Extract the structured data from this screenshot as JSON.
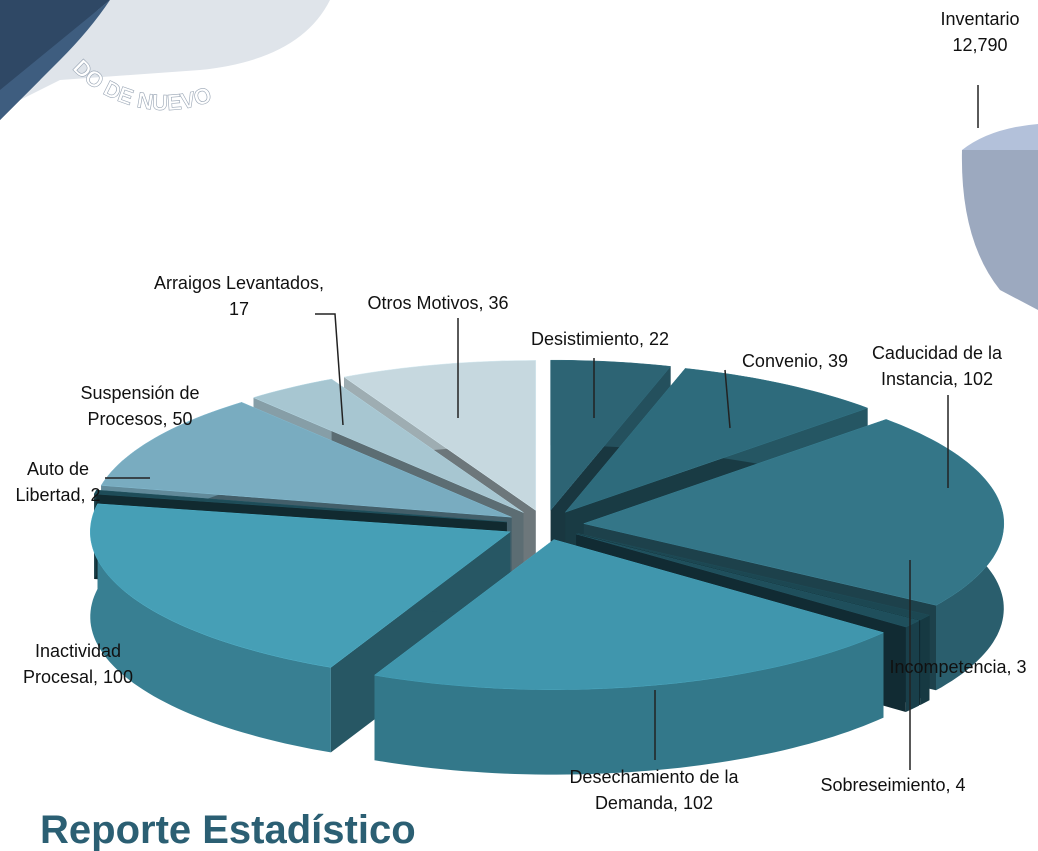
{
  "chart_data": [
    {
      "type": "pie",
      "title": "Reporte Estadístico",
      "categories": [
        "Desistimiento",
        "Convenio",
        "Caducidad de la Instancia",
        "Incompetencia",
        "Sobreseimiento",
        "Desechamiento de la Demanda",
        "Inactividad Procesal",
        "Auto de Libertad",
        "Suspensión de Procesos",
        "Arraigos Levantados",
        "Otros Motivos"
      ],
      "values": [
        22,
        39,
        102,
        3,
        4,
        102,
        100,
        2,
        50,
        17,
        36
      ],
      "colors": [
        "#2d6474",
        "#2e6b7c",
        "#347688",
        "#1c4752",
        "#1f4f5c",
        "#4096ad",
        "#469fb6",
        "#1e4c58",
        "#79acc0",
        "#a7c6d1",
        "#c6d8df"
      ]
    },
    {
      "type": "pie",
      "categories": [
        "Inventario"
      ],
      "values": [
        12790
      ],
      "value_labels": [
        "12,790"
      ],
      "colors": [
        "#aab8d0"
      ]
    }
  ],
  "logo_text": "DO DE NUEVO"
}
